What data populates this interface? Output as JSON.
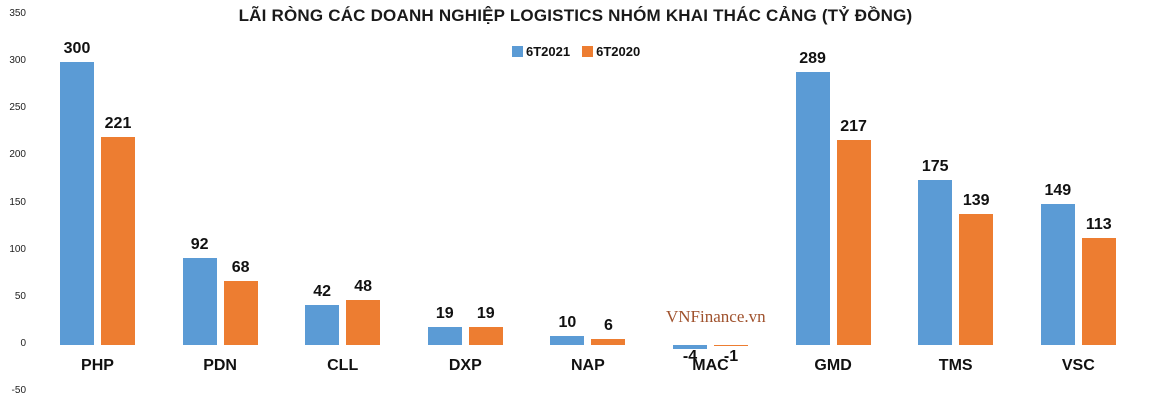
{
  "chart_data": {
    "type": "bar",
    "title": "LÃI RÒNG CÁC DOANH NGHIỆP LOGISTICS NHÓM KHAI THÁC CẢNG (TỶ ĐỒNG)",
    "xlabel": "",
    "ylabel": "",
    "ylim": [
      -50,
      350
    ],
    "yticks": [
      350,
      300,
      250,
      200,
      150,
      100,
      50,
      0,
      -50
    ],
    "grid": false,
    "legend_position": "top-center",
    "categories": [
      "PHP",
      "PDN",
      "CLL",
      "DXP",
      "NAP",
      "MAC",
      "GMD",
      "TMS",
      "VSC"
    ],
    "series": [
      {
        "name": "6T2021",
        "color": "#5B9BD5",
        "values": [
          300,
          92,
          42,
          19,
          10,
          -4,
          289,
          175,
          149
        ]
      },
      {
        "name": "6T2020",
        "color": "#ED7D31",
        "values": [
          221,
          68,
          48,
          19,
          6,
          -1,
          217,
          139,
          113
        ]
      }
    ],
    "annotations": [
      "VNFinance.vn"
    ]
  },
  "watermark": "VNFinance.vn"
}
